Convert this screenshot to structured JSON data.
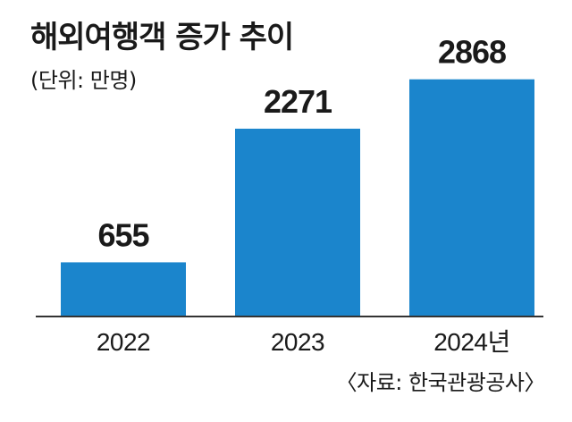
{
  "chart_data": {
    "type": "bar",
    "title": "해외여행객 증가 추이",
    "unit_label": "(단위: 만명)",
    "categories": [
      "2022",
      "2023",
      "2024년"
    ],
    "values": [
      655,
      2271,
      2868
    ],
    "data_labels": [
      "655",
      "2271",
      "2868"
    ],
    "ylim": [
      0,
      3200
    ],
    "grid": false,
    "source": "〈자료: 한국관광공사〉",
    "bar_color": "#1b85cc"
  }
}
